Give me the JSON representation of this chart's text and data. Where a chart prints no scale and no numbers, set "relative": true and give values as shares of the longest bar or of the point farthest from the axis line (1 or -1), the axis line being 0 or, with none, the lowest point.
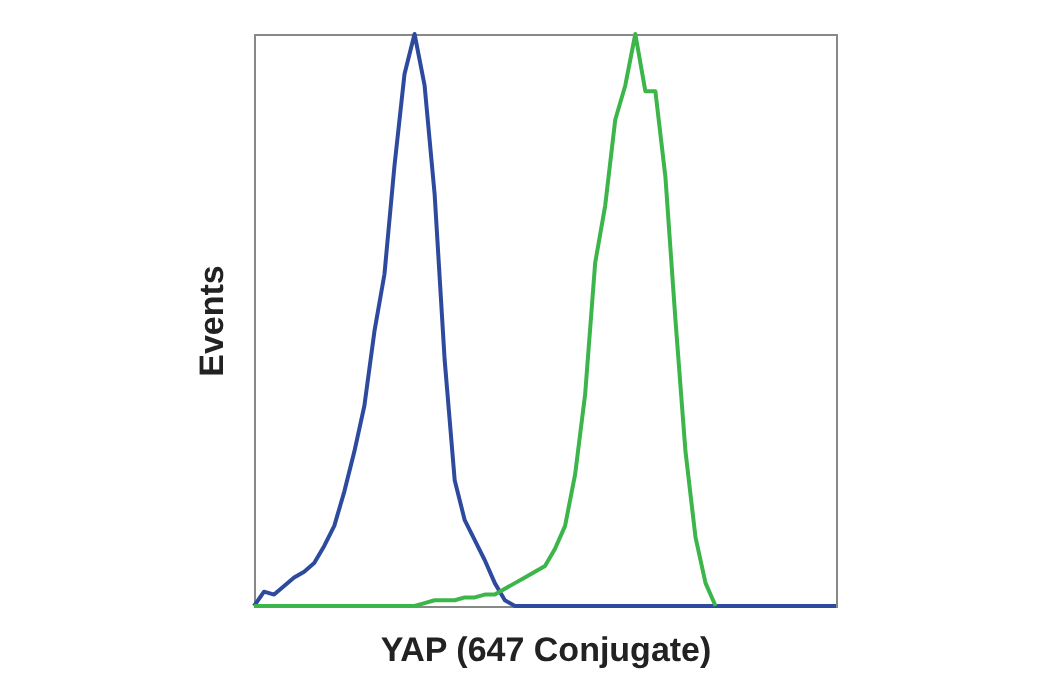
{
  "chart_data": {
    "type": "line",
    "relative": true,
    "xlabel": "YAP (647 Conjugate)",
    "ylabel": "Events",
    "grid": false,
    "marker": "none",
    "line_style": "solid",
    "categories": [
      null,
      null,
      null,
      null,
      null,
      null,
      null,
      null,
      null,
      null,
      null,
      null,
      null,
      null,
      null,
      null,
      null,
      null,
      null,
      null,
      null,
      null,
      null,
      null,
      null,
      null,
      null,
      null,
      null,
      null,
      null,
      null,
      null,
      null,
      null,
      null,
      null,
      null,
      null,
      null,
      null,
      null,
      null,
      null,
      null,
      null,
      null,
      null,
      null,
      null,
      null,
      null,
      null,
      null,
      null,
      null,
      null,
      null,
      null
    ],
    "series": [
      {
        "color": "#2e4a9e",
        "values": [
          0,
          0.025,
          0.02,
          0.035,
          0.05,
          0.06,
          0.075,
          0.105,
          0.14,
          0.2,
          0.27,
          0.35,
          0.48,
          0.58,
          0.77,
          0.93,
          1.0,
          0.91,
          0.72,
          0.43,
          0.22,
          0.15,
          0.115,
          0.08,
          0.04,
          0.01,
          0,
          0,
          0,
          0,
          0,
          0,
          0,
          0,
          0,
          0,
          0,
          0,
          0,
          0,
          0,
          0,
          0,
          0,
          0,
          0,
          0,
          0,
          0,
          0,
          0,
          0,
          0,
          0,
          0,
          0,
          0,
          0,
          0
        ]
      },
      {
        "color": "#3cb54a",
        "values": [
          0,
          0,
          0,
          0,
          0,
          0,
          0,
          0,
          0,
          0,
          0,
          0,
          0,
          0,
          0,
          0,
          0,
          0.005,
          0.01,
          0.01,
          0.01,
          0.015,
          0.015,
          0.02,
          0.02,
          0.03,
          0.04,
          0.05,
          0.06,
          0.07,
          0.1,
          0.14,
          0.23,
          0.37,
          0.6,
          0.7,
          0.85,
          0.91,
          1.0,
          0.9,
          0.9,
          0.75,
          0.5,
          0.27,
          0.12,
          0.04,
          0,
          null,
          null,
          null,
          null,
          null,
          null,
          null,
          null,
          null,
          null,
          null,
          null
        ]
      }
    ]
  }
}
